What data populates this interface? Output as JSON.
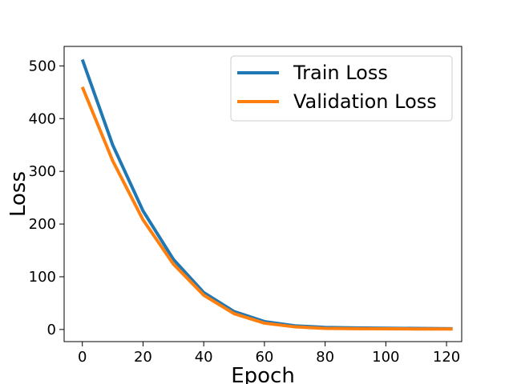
{
  "chart_data": {
    "type": "line",
    "title": "",
    "xlabel": "Epoch",
    "ylabel": "Loss",
    "xlim": [
      -6,
      125
    ],
    "ylim": [
      -23,
      537
    ],
    "xticks": [
      0,
      20,
      40,
      60,
      80,
      100,
      120
    ],
    "yticks": [
      0,
      100,
      200,
      300,
      400,
      500
    ],
    "grid": false,
    "legend": "top-right",
    "series": [
      {
        "name": "Train Loss",
        "color": "#1f77b4",
        "x": [
          0,
          10,
          20,
          30,
          40,
          50,
          60,
          70,
          80,
          90,
          100,
          110,
          122
        ],
        "y": [
          512,
          350,
          225,
          133,
          70,
          34,
          15,
          7,
          4,
          3,
          2.5,
          2,
          1.5
        ]
      },
      {
        "name": "Validation Loss",
        "color": "#ff7f0e",
        "x": [
          0,
          10,
          20,
          30,
          40,
          50,
          60,
          70,
          80,
          90,
          100,
          110,
          122
        ],
        "y": [
          460,
          320,
          208,
          124,
          65,
          30,
          12,
          5,
          2,
          1.5,
          1.2,
          1,
          1
        ]
      }
    ]
  }
}
